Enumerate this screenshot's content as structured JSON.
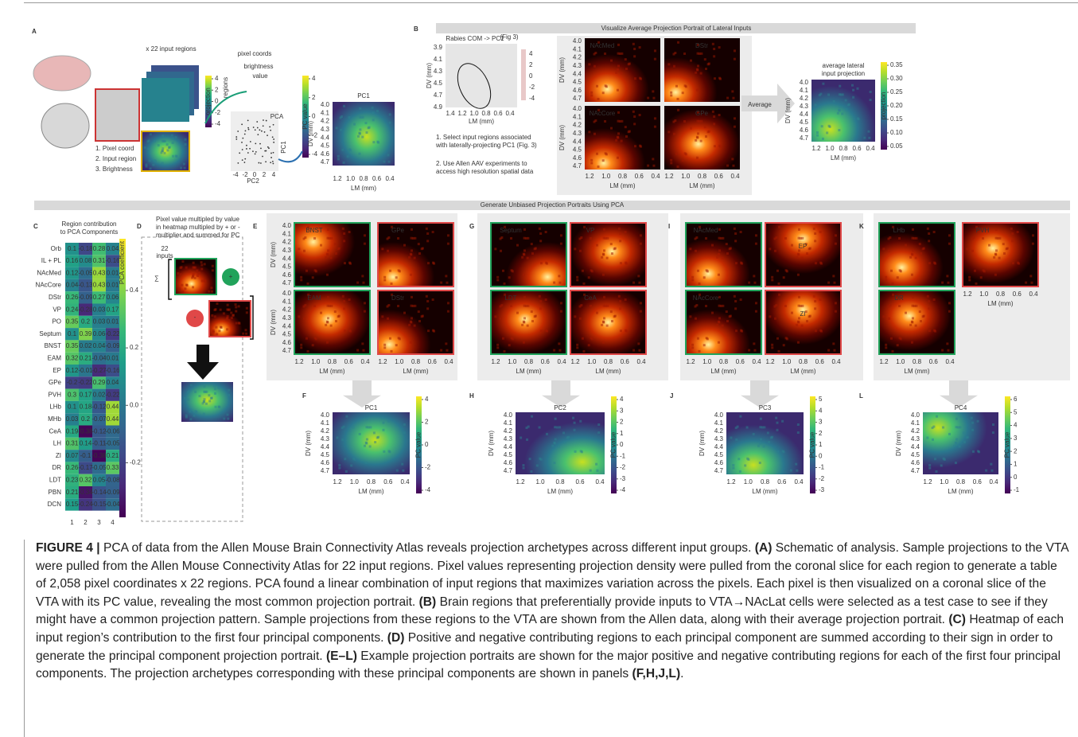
{
  "axes": {
    "dv_label": "DV (mm)",
    "lm_label": "LM (mm)",
    "dv_ticks": [
      "4.0",
      "4.1",
      "4.2",
      "4.3",
      "4.4",
      "4.5",
      "4.6",
      "4.7"
    ],
    "lm_ticks": [
      "1.2",
      "1.0",
      "0.8",
      "0.6",
      "0.4"
    ]
  },
  "banners": {
    "top": "Visualize Average Projection Portrait of Lateral Inputs",
    "middle": "Generate Unbiased Projection Portraits Using PCA"
  },
  "panel_a": {
    "letter": "A",
    "regions_label": "x 22 input regions",
    "pixel_coords": "pixel coords",
    "regions": "regions",
    "brightness": "brightness",
    "value": "value",
    "pca": "PCA",
    "pc1_axis": "PC1",
    "pc2_axis": "PC2",
    "projection_cb": "projection",
    "pc_value_cb": "PC value",
    "cb_ticks": [
      "4",
      "2",
      "0",
      "-2",
      "-4"
    ],
    "scatter_ticks": [
      "-4",
      "-2",
      "0",
      "2",
      "4"
    ],
    "steps": [
      "1. Pixel coord",
      "2. Input region",
      "3. Brightness"
    ],
    "portrait_title": "PC1"
  },
  "panel_b": {
    "letter": "B",
    "rabies_title": "Rabies COM -> PC1",
    "fig_ref": "(Fig 3)",
    "rabies_dv": [
      "3.9",
      "4.1",
      "4.3",
      "4.5",
      "4.7",
      "4.9"
    ],
    "rabies_lm": [
      "1.4",
      "1.2",
      "1.0",
      "0.8",
      "0.6",
      "0.4"
    ],
    "rabies_cb": [
      "4",
      "2",
      "0",
      "-2",
      "-4"
    ],
    "notes": [
      [
        "1. Select input regions associated",
        "with laterally-projecting PC1 (Fig. 3)"
      ],
      [
        "2. Use Allen AAV experiments to",
        "access high resolution spatial data"
      ]
    ],
    "portraits": [
      "NAcMed",
      "DStr",
      "NAcCore",
      "GPe"
    ],
    "average": "Average",
    "avg_title": [
      "average lateral",
      "input projection"
    ],
    "avg_cb": [
      "0.35",
      "0.30",
      "0.25",
      "0.20",
      "0.15",
      "0.10",
      "0.05"
    ],
    "avg_cb_label": "projection"
  },
  "panel_c": {
    "letter": "C",
    "title": [
      "Region contribution",
      "to PCA Components"
    ],
    "columns": [
      1,
      2,
      3,
      4
    ],
    "clim": [
      -0.39,
      0.58
    ],
    "cb_ticks": [
      0.4,
      0.2,
      {
        "value": 0,
        "label": "0.0"
      },
      -0.2
    ],
    "cb_label": "PCA coefficient",
    "rows": [
      {
        "region": "Orb",
        "values": [
          0.1,
          -0.18,
          0.28,
          0.04
        ]
      },
      {
        "region": "IL + PL",
        "values": [
          0.16,
          0.08,
          0.31,
          -0.16
        ]
      },
      {
        "region": "NAcMed",
        "values": [
          0.12,
          -0.05,
          0.43,
          0.01
        ]
      },
      {
        "region": "NAcCore",
        "values": [
          0.04,
          -0.13,
          0.43,
          0.01
        ]
      },
      {
        "region": "DStr",
        "values": [
          0.26,
          -0.09,
          0.27,
          0.06
        ]
      },
      {
        "region": "VP",
        "values": [
          0.24,
          -0.28,
          0.03,
          0.17
        ]
      },
      {
        "region": "PO",
        "values": [
          0.35,
          0.2,
          0.03,
          0.01
        ]
      },
      {
        "region": "Septum",
        "values": [
          0.1,
          0.39,
          0.06,
          -0.22
        ]
      },
      {
        "region": "BNST",
        "values": [
          0.35,
          0.02,
          0.04,
          -0.09
        ]
      },
      {
        "region": "EAM",
        "values": [
          0.32,
          0.21,
          -0.04,
          0.01
        ]
      },
      {
        "region": "EP",
        "values": [
          0.12,
          -0.01,
          -0.27,
          -0.16
        ]
      },
      {
        "region": "GPe",
        "values": [
          -0.2,
          -0.22,
          0.29,
          0.04
        ]
      },
      {
        "region": "PVH",
        "values": [
          0.3,
          0.17,
          0.02,
          -0.22
        ]
      },
      {
        "region": "LHb",
        "values": [
          0.1,
          0.18,
          -0.12,
          0.44
        ]
      },
      {
        "region": "MHb",
        "values": [
          0.03,
          0.2,
          -0.07,
          0.44
        ]
      },
      {
        "region": "CeA",
        "values": [
          0.19,
          -0.38,
          -0.12,
          -0.06
        ]
      },
      {
        "region": "LH",
        "values": [
          0.31,
          0.14,
          -0.11,
          -0.05
        ]
      },
      {
        "region": "ZI",
        "values": [
          0.07,
          -0.1,
          -0.38,
          0.21
        ]
      },
      {
        "region": "DR",
        "values": [
          0.26,
          -0.17,
          -0.05,
          0.33
        ]
      },
      {
        "region": "LDT",
        "values": [
          0.23,
          0.32,
          0.05,
          -0.08
        ]
      },
      {
        "region": "PBN",
        "values": [
          0.21,
          -0.34,
          -0.14,
          -0.09
        ]
      },
      {
        "region": "DCN",
        "values": [
          0.15,
          -0.24,
          -0.15,
          -0.04
        ]
      }
    ]
  },
  "panel_d": {
    "letter": "D",
    "text": [
      "Pixel value multipled by value",
      "in heatmap multipled by + or -",
      "multiplier and summed for PC"
    ],
    "inputs": [
      "22",
      "inputs"
    ],
    "sum": "∑",
    "plus": "+",
    "minus": "-"
  },
  "groups": [
    {
      "letter": "E",
      "portraits": [
        "BNST",
        "GPe",
        "EAM",
        "DStr"
      ],
      "pc_letter": "F",
      "pc_title": "PC1",
      "cb": [
        "4",
        "2",
        "0",
        "-2",
        "-4"
      ],
      "cb_label": "PC value"
    },
    {
      "letter": "G",
      "portraits": [
        "Septum",
        "VP",
        "LDT",
        "CeA"
      ],
      "pc_letter": "H",
      "pc_title": "PC2",
      "cb": [
        "4",
        "3",
        "2",
        "1",
        "0",
        "-1",
        "-2",
        "-3",
        "-4"
      ],
      "cb_label": "PC value"
    },
    {
      "letter": "I",
      "portraits": [
        "NAcMed",
        "EP",
        "NAcCore",
        "ZI"
      ],
      "pc_letter": "J",
      "pc_title": "PC3",
      "cb": [
        "5",
        "4",
        "3",
        "2",
        "1",
        "0",
        "-1",
        "-2",
        "-3"
      ],
      "cb_label": "PC value"
    },
    {
      "letter": "K",
      "portraits": [
        "LHb",
        "PVH",
        "DR"
      ],
      "pc_letter": "L",
      "pc_title": "PC4",
      "cb": [
        "6",
        "5",
        "4",
        "3",
        "2",
        "1",
        "0",
        "-1"
      ],
      "cb_label": "PC value"
    }
  ],
  "caption": [
    {
      "text": "FIGURE 4 |",
      "bold": true
    },
    {
      "text": " PCA of data from the Allen Mouse Brain Connectivity Atlas reveals projection archetypes across different input groups. "
    },
    {
      "text": "(A)",
      "bold": true
    },
    {
      "text": " Schematic of analysis. Sample projections to the VTA were pulled from the Allen Mouse Connectivity Atlas for 22 input regions. Pixel values representing projection density were pulled from the coronal slice for each region to generate a table of 2,058 pixel coordinates x 22 regions. PCA found a linear combination of input regions that maximizes variation across the pixels. Each pixel is then visualized on a coronal slice of the VTA with its PC value, revealing the most common projection portrait. "
    },
    {
      "text": "(B)",
      "bold": true
    },
    {
      "text": " Brain regions that preferentially provide inputs to VTA→NAcLat cells were selected as a test case to see if they might have a common projection pattern. Sample projections from these regions to the VTA are shown from the Allen data, along with their average projection portrait. "
    },
    {
      "text": "(C)",
      "bold": true
    },
    {
      "text": " Heatmap of each input region’s contribution to the first four principal components. "
    },
    {
      "text": "(D)",
      "bold": true
    },
    {
      "text": " Positive and negative contributing regions to each principal component are summed according to their sign in order to generate the principal component projection portrait. "
    },
    {
      "text": "(E–L)",
      "bold": true
    },
    {
      "text": " Example projection portraits are shown for the major positive and negative contributing regions for each of the first four principal components. The projection archetypes corresponding with these principal components are shown in panels "
    },
    {
      "text": "(F,H,J,L)",
      "bold": true
    },
    {
      "text": "."
    }
  ]
}
